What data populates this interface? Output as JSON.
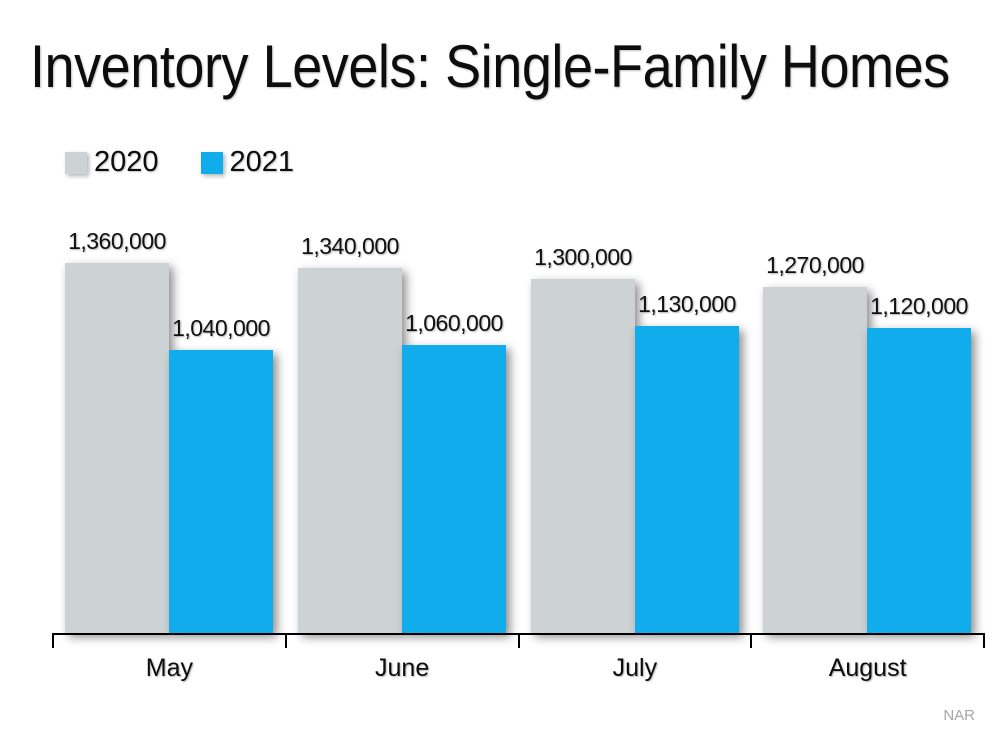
{
  "title": "Inventory Levels: Single-Family Homes",
  "attribution": "NAR",
  "colors": {
    "background": "#FFFFFF",
    "series_2020": "#CDD2D5",
    "series_2021": "#11ACEB",
    "axis": "#000000",
    "data_label_text": "#111111",
    "attribution_text": "#A6A6A6"
  },
  "legend": {
    "items": [
      {
        "label": "2020",
        "color": "#CDD2D5"
      },
      {
        "label": "2021",
        "color": "#11ACEB"
      }
    ]
  },
  "chart_data": {
    "type": "bar",
    "title": "Inventory Levels: Single-Family Homes",
    "categories": [
      "May",
      "June",
      "July",
      "August"
    ],
    "series": [
      {
        "name": "2020",
        "color": "#CDD2D5",
        "values": [
          1360000,
          1340000,
          1300000,
          1270000
        ],
        "labels": [
          "1,360,000",
          "1,340,000",
          "1,300,000",
          "1,270,000"
        ]
      },
      {
        "name": "2021",
        "color": "#11ACEB",
        "values": [
          1040000,
          1060000,
          1130000,
          1120000
        ],
        "labels": [
          "1,040,000",
          "1,060,000",
          "1,130,000",
          "1,120,000"
        ]
      }
    ],
    "xlabel": "",
    "ylabel": "",
    "ylim": [
      0,
      1360000
    ],
    "grid": false,
    "y_axis_visible": false,
    "legend_position": "top-left",
    "data_labels": true,
    "source": "NAR"
  }
}
